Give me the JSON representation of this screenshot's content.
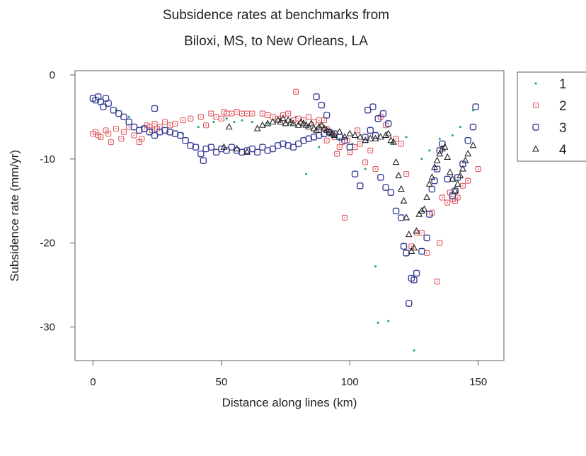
{
  "chart_data": {
    "type": "scatter",
    "title": "Subsidence rates at benchmarks from",
    "subtitle": "Biloxi, MS, to New Orleans, LA",
    "xlabel": "Distance along lines (km)",
    "ylabel": "Subsidence rate (mm/yr)",
    "xlim": [
      -7,
      160
    ],
    "ylim": [
      -34,
      0.5
    ],
    "xticks": [
      0,
      50,
      100,
      150
    ],
    "yticks": [
      0,
      -10,
      -20,
      -30
    ],
    "grid": false,
    "legend_position": "right",
    "series": [
      {
        "name": "1",
        "marker": "dot",
        "color": "#2ea88a",
        "x": [
          2,
          5,
          9,
          14,
          19,
          23,
          29,
          35,
          41,
          47,
          52,
          55,
          58,
          62,
          68,
          73,
          79,
          83,
          88,
          92,
          96,
          101,
          106,
          110,
          111,
          115,
          117,
          122,
          125,
          128,
          131,
          135,
          140,
          143,
          148
        ],
        "y": [
          -3.2,
          -3.6,
          -4.2,
          -5.0,
          -6.2,
          -6.5,
          -6.8,
          -7.0,
          -6.2,
          -5.6,
          -5.2,
          -5.6,
          -5.4,
          -5.6,
          -5.8,
          -5.2,
          -5.0,
          -11.8,
          -8.6,
          -7.2,
          -7.6,
          -8.2,
          -11.2,
          -22.8,
          -29.5,
          -29.3,
          -8.2,
          -7.4,
          -32.8,
          -10.0,
          -9.0,
          -7.6,
          -7.2,
          -6.2,
          -4.2
        ]
      },
      {
        "name": "2",
        "marker": "square-dot",
        "color": "#e0575e",
        "x": [
          0,
          1,
          2,
          3,
          5,
          6,
          7,
          9,
          11,
          12,
          14,
          16,
          18,
          19,
          20,
          21,
          22,
          23,
          24,
          25,
          26,
          28,
          30,
          32,
          35,
          38,
          42,
          44,
          46,
          48,
          50,
          51,
          52,
          54,
          56,
          58,
          60,
          62,
          66,
          68,
          70,
          72,
          74,
          76,
          78,
          79,
          80,
          82,
          84,
          86,
          88,
          90,
          91,
          92,
          93,
          94,
          96,
          98,
          100,
          102,
          104,
          106,
          108,
          110,
          112,
          114,
          118,
          120,
          122,
          124,
          126,
          128,
          130,
          132,
          134,
          135,
          136,
          138,
          139,
          140,
          141,
          142,
          144,
          146,
          150,
          89,
          91,
          95,
          97,
          99,
          103
        ],
        "y": [
          -7.0,
          -6.8,
          -7.2,
          -7.4,
          -6.6,
          -7.0,
          -8.0,
          -6.4,
          -7.6,
          -6.8,
          -6.2,
          -7.2,
          -8.0,
          -7.6,
          -6.4,
          -6.0,
          -6.2,
          -6.6,
          -5.8,
          -6.4,
          -6.2,
          -5.6,
          -6.0,
          -5.8,
          -5.4,
          -5.2,
          -5.0,
          -6.0,
          -4.6,
          -5.0,
          -5.2,
          -4.4,
          -4.6,
          -4.6,
          -4.4,
          -4.6,
          -4.6,
          -4.6,
          -4.6,
          -4.8,
          -5.0,
          -5.2,
          -4.8,
          -4.6,
          -5.4,
          -2.0,
          -5.2,
          -5.4,
          -5.0,
          -5.6,
          -5.4,
          -5.4,
          -6.4,
          -6.8,
          -7.0,
          -7.4,
          -8.6,
          -17.0,
          -9.2,
          -8.6,
          -8.2,
          -10.4,
          -9.0,
          -11.2,
          -5.0,
          -6.0,
          -7.6,
          -8.2,
          -11.8,
          -20.4,
          -18.8,
          -18.8,
          -21.2,
          -16.4,
          -24.6,
          -20.0,
          -14.6,
          -15.2,
          -14.0,
          -14.8,
          -15.0,
          -14.6,
          -13.2,
          -12.6,
          -11.2,
          -6.2,
          -7.8,
          -9.4,
          -8.0,
          -7.8,
          -6.6
        ]
      },
      {
        "name": "3",
        "marker": "square",
        "color": "#3a3f96",
        "x": [
          0,
          1,
          2,
          3,
          4,
          5,
          6,
          8,
          10,
          12,
          14,
          16,
          18,
          20,
          22,
          24,
          26,
          28,
          30,
          32,
          34,
          36,
          38,
          40,
          42,
          43,
          44,
          46,
          48,
          50,
          52,
          54,
          56,
          58,
          60,
          62,
          64,
          66,
          68,
          70,
          72,
          74,
          76,
          78,
          80,
          82,
          84,
          86,
          88,
          90,
          92,
          94,
          96,
          98,
          100,
          102,
          104,
          106,
          108,
          110,
          112,
          114,
          116,
          118,
          120,
          121,
          122,
          123,
          124,
          125,
          126,
          128,
          130,
          131,
          132,
          133,
          134,
          135,
          136,
          138,
          140,
          141,
          142,
          144,
          146,
          148,
          149,
          24,
          87,
          89,
          91,
          107,
          109,
          111,
          113,
          115
        ],
        "y": [
          -2.8,
          -3.0,
          -2.6,
          -3.2,
          -3.8,
          -2.8,
          -3.4,
          -4.2,
          -4.6,
          -5.0,
          -5.6,
          -6.2,
          -6.6,
          -6.4,
          -6.8,
          -7.2,
          -6.8,
          -6.6,
          -6.8,
          -7.0,
          -7.2,
          -7.8,
          -8.4,
          -8.6,
          -9.4,
          -10.2,
          -8.8,
          -8.6,
          -9.2,
          -8.8,
          -9.0,
          -8.6,
          -9.0,
          -9.2,
          -9.0,
          -8.8,
          -9.2,
          -8.6,
          -9.0,
          -8.8,
          -8.4,
          -8.2,
          -8.4,
          -8.6,
          -8.2,
          -7.8,
          -7.6,
          -7.4,
          -7.2,
          -7.0,
          -6.8,
          -7.0,
          -7.4,
          -7.8,
          -8.6,
          -11.8,
          -13.2,
          -7.4,
          -6.6,
          -7.2,
          -12.2,
          -13.4,
          -14.0,
          -16.2,
          -17.0,
          -20.4,
          -21.2,
          -27.2,
          -24.2,
          -24.4,
          -23.6,
          -21.0,
          -19.4,
          -16.6,
          -13.6,
          -12.6,
          -11.2,
          -9.0,
          -8.2,
          -12.4,
          -14.4,
          -13.8,
          -12.2,
          -10.6,
          -7.8,
          -6.2,
          -3.8,
          -4.0,
          -2.6,
          -3.6,
          -4.8,
          -4.2,
          -3.8,
          -5.2,
          -4.6,
          -5.8
        ]
      },
      {
        "name": "4",
        "marker": "triangle",
        "color": "#222222",
        "x": [
          51,
          53,
          56,
          60,
          64,
          66,
          68,
          70,
          72,
          73,
          74,
          75,
          76,
          77,
          78,
          80,
          81,
          82,
          83,
          84,
          85,
          86,
          87,
          88,
          89,
          90,
          91,
          92,
          93,
          94,
          96,
          98,
          100,
          102,
          104,
          106,
          108,
          110,
          112,
          114,
          115,
          116,
          117,
          118,
          119,
          120,
          121,
          122,
          123,
          124,
          125,
          126,
          127,
          128,
          129,
          130,
          131,
          132,
          133,
          134,
          135,
          136,
          137,
          138,
          139,
          140,
          141,
          142,
          143,
          144,
          145,
          146,
          148
        ],
        "y": [
          -8.6,
          -6.2,
          -8.8,
          -9.2,
          -6.4,
          -6.0,
          -5.8,
          -5.6,
          -5.4,
          -5.6,
          -5.2,
          -5.8,
          -5.4,
          -5.6,
          -5.8,
          -6.0,
          -5.6,
          -5.8,
          -6.0,
          -6.2,
          -5.8,
          -6.4,
          -6.6,
          -6.2,
          -6.0,
          -6.4,
          -6.6,
          -6.8,
          -7.0,
          -7.2,
          -6.8,
          -7.4,
          -7.0,
          -7.2,
          -7.4,
          -7.8,
          -7.6,
          -7.6,
          -7.4,
          -7.2,
          -7.0,
          -7.8,
          -8.0,
          -10.4,
          -12.0,
          -13.6,
          -15.0,
          -17.0,
          -19.0,
          -21.0,
          -20.6,
          -18.6,
          -16.6,
          -16.2,
          -16.0,
          -14.6,
          -13.0,
          -12.2,
          -11.0,
          -10.2,
          -9.4,
          -8.8,
          -8.6,
          -9.8,
          -11.6,
          -12.4,
          -13.8,
          -13.0,
          -12.0,
          -11.2,
          -10.2,
          -9.4,
          -8.4
        ]
      }
    ]
  }
}
